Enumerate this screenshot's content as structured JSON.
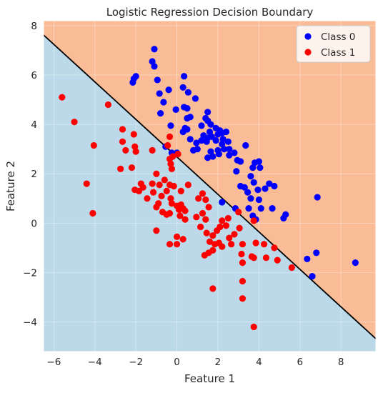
{
  "chart_data": {
    "type": "scatter",
    "title": "Logistic Regression Decision Boundary",
    "xlabel": "Feature 1",
    "ylabel": "Feature 2",
    "xlim": [
      -6.5,
      9.7
    ],
    "ylim": [
      -5.2,
      8.2
    ],
    "xticks": [
      -6,
      -4,
      -2,
      0,
      2,
      4,
      6,
      8
    ],
    "yticks": [
      -4,
      -2,
      0,
      2,
      4,
      6,
      8
    ],
    "grid": true,
    "legend_position": "top-right",
    "decision_boundary": {
      "line": [
        [
          -6.5,
          7.62
        ],
        [
          9.7,
          -4.68
        ]
      ],
      "region_below_color": "#bbd9e9",
      "region_above_color": "#f9bc96",
      "line_color": "#000000"
    },
    "series": [
      {
        "name": "Class 0",
        "color": "#0000ff",
        "points": [
          [
            -1.1,
            7.05
          ],
          [
            -1.2,
            6.55
          ],
          [
            -1.1,
            6.35
          ],
          [
            -2.0,
            5.95
          ],
          [
            -2.1,
            5.85
          ],
          [
            -2.15,
            5.7
          ],
          [
            -0.95,
            5.8
          ],
          [
            -0.85,
            5.25
          ],
          [
            -0.4,
            5.4
          ],
          [
            -0.65,
            4.9
          ],
          [
            0.35,
            5.95
          ],
          [
            0.3,
            5.5
          ],
          [
            0.55,
            5.3
          ],
          [
            0.9,
            5.05
          ],
          [
            -0.8,
            4.45
          ],
          [
            -0.05,
            4.6
          ],
          [
            0.35,
            4.7
          ],
          [
            0.5,
            4.65
          ],
          [
            0.5,
            4.25
          ],
          [
            0.65,
            4.3
          ],
          [
            0.4,
            3.85
          ],
          [
            0.5,
            3.8
          ],
          [
            0.3,
            3.7
          ],
          [
            -0.3,
            3.95
          ],
          [
            1.2,
            3.95
          ],
          [
            1.5,
            4.5
          ],
          [
            1.4,
            4.25
          ],
          [
            1.5,
            4.15
          ],
          [
            1.65,
            4.0
          ],
          [
            1.6,
            3.7
          ],
          [
            1.9,
            3.85
          ],
          [
            2.1,
            3.75
          ],
          [
            2.0,
            3.6
          ],
          [
            2.2,
            3.65
          ],
          [
            2.4,
            3.7
          ],
          [
            1.3,
            3.55
          ],
          [
            1.5,
            3.45
          ],
          [
            1.7,
            3.5
          ],
          [
            1.2,
            3.35
          ],
          [
            1.45,
            3.3
          ],
          [
            1.9,
            3.35
          ],
          [
            2.25,
            3.4
          ],
          [
            2.5,
            3.3
          ],
          [
            2.2,
            3.2
          ],
          [
            0.65,
            3.4
          ],
          [
            0.95,
            3.25
          ],
          [
            0.8,
            2.95
          ],
          [
            1.0,
            3.0
          ],
          [
            -0.55,
            3.1
          ],
          [
            -0.25,
            2.85
          ],
          [
            0.0,
            2.85
          ],
          [
            1.65,
            2.9
          ],
          [
            2.0,
            2.95
          ],
          [
            2.3,
            3.0
          ],
          [
            2.55,
            3.0
          ],
          [
            2.8,
            2.85
          ],
          [
            1.5,
            2.65
          ],
          [
            1.75,
            2.7
          ],
          [
            2.05,
            2.8
          ],
          [
            2.55,
            2.75
          ],
          [
            2.95,
            2.55
          ],
          [
            3.35,
            3.15
          ],
          [
            3.1,
            2.5
          ],
          [
            3.8,
            2.45
          ],
          [
            3.7,
            2.25
          ],
          [
            4.0,
            2.5
          ],
          [
            4.05,
            2.25
          ],
          [
            3.6,
            1.9
          ],
          [
            2.9,
            2.1
          ],
          [
            3.75,
            1.65
          ],
          [
            3.95,
            1.35
          ],
          [
            4.3,
            1.4
          ],
          [
            4.5,
            1.6
          ],
          [
            4.75,
            1.5
          ],
          [
            3.1,
            1.5
          ],
          [
            3.3,
            1.45
          ],
          [
            3.45,
            1.25
          ],
          [
            3.6,
            1.0
          ],
          [
            4.0,
            0.95
          ],
          [
            4.1,
            0.6
          ],
          [
            4.65,
            0.6
          ],
          [
            3.7,
            0.3
          ],
          [
            3.85,
            0.15
          ],
          [
            3.5,
            0.6
          ],
          [
            5.3,
            0.35
          ],
          [
            5.2,
            0.2
          ],
          [
            2.85,
            0.6
          ],
          [
            2.2,
            0.85
          ],
          [
            6.85,
            1.05
          ],
          [
            6.8,
            -1.2
          ],
          [
            6.35,
            -1.45
          ],
          [
            6.6,
            -2.15
          ],
          [
            8.7,
            -1.6
          ]
        ]
      },
      {
        "name": "Class 1",
        "color": "#ff0000",
        "points": [
          [
            -5.6,
            5.1
          ],
          [
            -5.0,
            4.1
          ],
          [
            -3.35,
            4.8
          ],
          [
            -4.05,
            3.15
          ],
          [
            -2.65,
            3.8
          ],
          [
            -2.1,
            3.6
          ],
          [
            -2.65,
            3.3
          ],
          [
            -2.5,
            2.95
          ],
          [
            -2.05,
            3.1
          ],
          [
            -2.0,
            2.9
          ],
          [
            -1.2,
            2.95
          ],
          [
            -0.35,
            3.5
          ],
          [
            -0.45,
            3.15
          ],
          [
            -0.2,
            2.7
          ],
          [
            0.05,
            2.8
          ],
          [
            -0.35,
            2.6
          ],
          [
            -0.3,
            2.4
          ],
          [
            -0.25,
            2.2
          ],
          [
            -2.75,
            2.2
          ],
          [
            -2.2,
            2.25
          ],
          [
            -1.0,
            2.0
          ],
          [
            -4.4,
            1.6
          ],
          [
            -4.1,
            0.4
          ],
          [
            -1.75,
            1.6
          ],
          [
            -1.65,
            1.45
          ],
          [
            -1.2,
            1.6
          ],
          [
            -0.85,
            1.55
          ],
          [
            -0.6,
            1.75
          ],
          [
            -0.35,
            1.55
          ],
          [
            -0.15,
            1.5
          ],
          [
            0.2,
            1.3
          ],
          [
            0.55,
            1.55
          ],
          [
            -2.05,
            1.35
          ],
          [
            -1.85,
            1.3
          ],
          [
            -1.45,
            1.0
          ],
          [
            -1.15,
            1.25
          ],
          [
            -0.75,
            1.1
          ],
          [
            -0.5,
            1.3
          ],
          [
            -0.3,
            1.0
          ],
          [
            -0.9,
            0.8
          ],
          [
            -1.0,
            0.65
          ],
          [
            -0.7,
            0.45
          ],
          [
            -0.5,
            0.35
          ],
          [
            -0.25,
            0.8
          ],
          [
            0.0,
            0.7
          ],
          [
            0.1,
            0.55
          ],
          [
            0.3,
            0.6
          ],
          [
            0.4,
            0.5
          ],
          [
            0.15,
            0.3
          ],
          [
            0.4,
            0.15
          ],
          [
            0.95,
            0.25
          ],
          [
            1.05,
            1.0
          ],
          [
            1.25,
            1.2
          ],
          [
            1.4,
            0.95
          ],
          [
            1.55,
            0.65
          ],
          [
            1.25,
            0.4
          ],
          [
            1.4,
            0.15
          ],
          [
            1.15,
            -0.15
          ],
          [
            1.45,
            -0.4
          ],
          [
            1.75,
            -0.5
          ],
          [
            1.95,
            -0.3
          ],
          [
            2.1,
            -0.15
          ],
          [
            2.4,
            -0.1
          ],
          [
            2.2,
            0.1
          ],
          [
            2.5,
            0.2
          ],
          [
            3.0,
            0.45
          ],
          [
            1.6,
            -0.75
          ],
          [
            1.85,
            -0.85
          ],
          [
            2.05,
            -0.8
          ],
          [
            1.75,
            -1.1
          ],
          [
            1.55,
            -1.2
          ],
          [
            1.35,
            -1.3
          ],
          [
            2.55,
            -0.6
          ],
          [
            2.8,
            -0.45
          ],
          [
            2.2,
            -0.95
          ],
          [
            2.65,
            -0.85
          ],
          [
            3.05,
            -0.2
          ],
          [
            3.2,
            -0.85
          ],
          [
            3.15,
            -1.25
          ],
          [
            3.2,
            -1.6
          ],
          [
            3.65,
            -1.35
          ],
          [
            3.85,
            -0.8
          ],
          [
            3.75,
            -1.4
          ],
          [
            4.25,
            -0.85
          ],
          [
            4.35,
            -1.4
          ],
          [
            4.75,
            -1.0
          ],
          [
            4.9,
            -1.5
          ],
          [
            5.6,
            -1.8
          ],
          [
            -1.0,
            -0.3
          ],
          [
            -0.35,
            -0.85
          ],
          [
            0.0,
            -0.85
          ],
          [
            0.3,
            -0.65
          ],
          [
            0.0,
            -0.55
          ],
          [
            3.75,
            0.1
          ],
          [
            3.2,
            -2.35
          ],
          [
            1.75,
            -2.65
          ],
          [
            3.2,
            -3.05
          ],
          [
            3.75,
            -4.2
          ],
          [
            -0.35,
            0.4
          ],
          [
            0.2,
            0.75
          ]
        ]
      }
    ]
  }
}
